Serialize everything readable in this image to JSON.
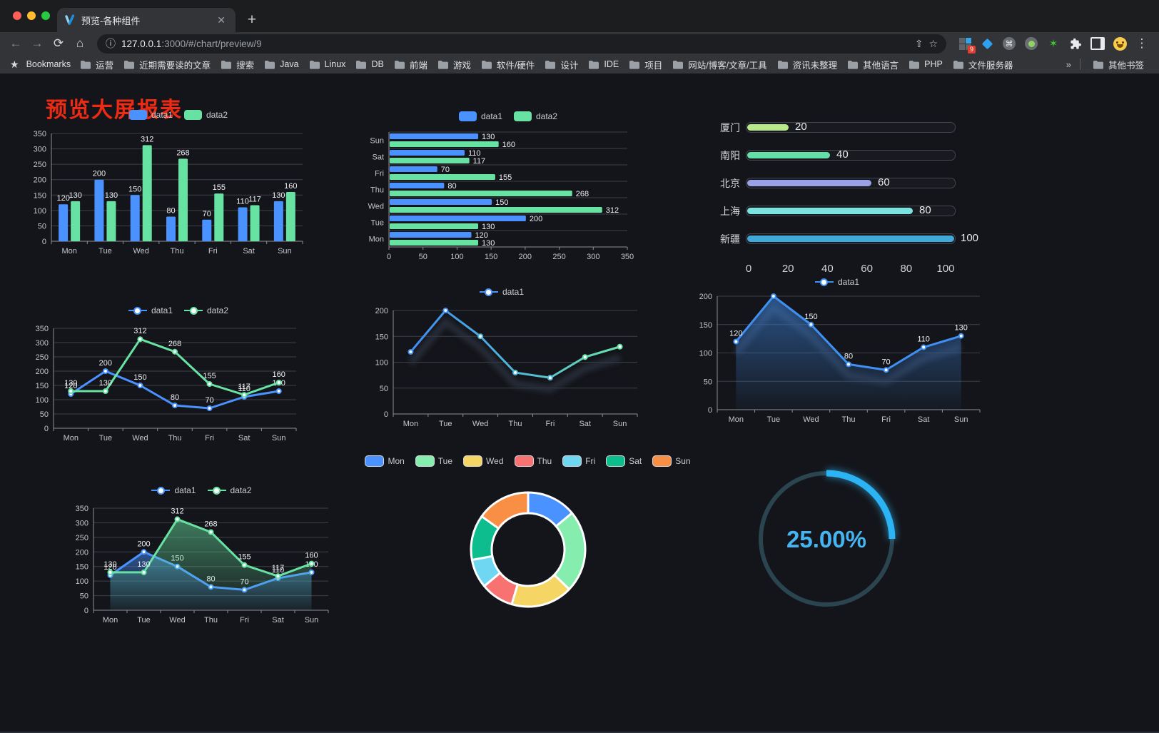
{
  "browser": {
    "tab_title": "预览-各种组件",
    "close_label": "✕",
    "new_tab_label": "+",
    "url_host": "127.0.0.1",
    "url_rest": ":3000/#/chart/preview/9",
    "bookmarks_label": "Bookmarks",
    "bookmarks": [
      "运营",
      "近期需要读的文章",
      "搜索",
      "Java",
      "Linux",
      "DB",
      "前端",
      "游戏",
      "软件/硬件",
      "设计",
      "IDE",
      "项目",
      "网站/博客/文章/工具",
      "资讯未整理",
      "其他语言",
      "PHP",
      "文件服务器"
    ],
    "bookmarks_overflow": "»",
    "other_bookmarks": "其他书签",
    "extension_badge": "9",
    "extensions": [
      "grid-badge-extension-icon",
      "gem-extension-icon",
      "command-extension-icon",
      "dot-extension-icon",
      "green-star-extension-icon"
    ]
  },
  "page": {
    "title": "预览大屏报表",
    "title_color": "#ed2b15"
  },
  "palette": {
    "data1": "#4992ff",
    "data2": "#68e2a2",
    "grid": "#3d4046",
    "axis": "#8b8f95",
    "tick_text": "#c3c6cb",
    "value_text": "#eef0f3"
  },
  "chart_data": [
    {
      "id": "grouped-bar",
      "type": "bar",
      "categories": [
        "Mon",
        "Tue",
        "Wed",
        "Thu",
        "Fri",
        "Sat",
        "Sun"
      ],
      "series": [
        {
          "name": "data1",
          "color": "#4992ff",
          "values": [
            120,
            200,
            150,
            80,
            70,
            110,
            130
          ]
        },
        {
          "name": "data2",
          "color": "#68e2a2",
          "values": [
            130,
            130,
            312,
            268,
            155,
            117,
            160
          ]
        }
      ],
      "ylim": [
        0,
        350
      ],
      "ystep": 50,
      "legend": "roundRect",
      "value_labels": true
    },
    {
      "id": "horizontal-bar",
      "type": "bar-horizontal",
      "categories": [
        "Mon",
        "Tue",
        "Wed",
        "Thu",
        "Fri",
        "Sat",
        "Sun"
      ],
      "series": [
        {
          "name": "data1",
          "color": "#4992ff",
          "values": [
            120,
            200,
            150,
            80,
            70,
            110,
            130
          ]
        },
        {
          "name": "data2",
          "color": "#68e2a2",
          "values": [
            130,
            130,
            312,
            268,
            155,
            117,
            160
          ]
        }
      ],
      "xlim": [
        0,
        350
      ],
      "xstep": 50,
      "legend": "roundRect",
      "value_labels": true
    },
    {
      "id": "progress-bars",
      "type": "progress",
      "items": [
        {
          "label": "厦门",
          "value": 20,
          "color": "#b7e98c"
        },
        {
          "label": "南阳",
          "value": 40,
          "color": "#65dfa8"
        },
        {
          "label": "北京",
          "value": 60,
          "color": "#9aa0e5"
        },
        {
          "label": "上海",
          "value": 80,
          "color": "#7ae3e0"
        },
        {
          "label": "新疆",
          "value": 100,
          "color": "#41a9da"
        }
      ],
      "xlim": [
        0,
        100
      ],
      "xticks": [
        0,
        20,
        40,
        60,
        80,
        100
      ]
    },
    {
      "id": "line-two-series",
      "type": "line",
      "categories": [
        "Mon",
        "Tue",
        "Wed",
        "Thu",
        "Fri",
        "Sat",
        "Sun"
      ],
      "series": [
        {
          "name": "data1",
          "color": "#4992ff",
          "values": [
            120,
            200,
            150,
            80,
            70,
            110,
            130
          ]
        },
        {
          "name": "data2",
          "color": "#68e2a2",
          "values": [
            130,
            130,
            312,
            268,
            155,
            117,
            160
          ]
        }
      ],
      "ylim": [
        0,
        350
      ],
      "ystep": 50,
      "legend": "lineMarker",
      "value_labels": true
    },
    {
      "id": "line-gradient",
      "type": "line",
      "categories": [
        "Mon",
        "Tue",
        "Wed",
        "Thu",
        "Fri",
        "Sat",
        "Sun"
      ],
      "series": [
        {
          "name": "data1",
          "color": "#4992ff",
          "gradient": [
            "#3f8cf2",
            "#4fb6d8",
            "#67e2a8"
          ],
          "values": [
            120,
            200,
            150,
            80,
            70,
            110,
            130
          ]
        }
      ],
      "ylim": [
        0,
        200
      ],
      "ystep": 50,
      "legend": "lineMarker",
      "value_labels": false,
      "shadow": true
    },
    {
      "id": "area-single",
      "type": "line",
      "categories": [
        "Mon",
        "Tue",
        "Wed",
        "Thu",
        "Fri",
        "Sat",
        "Sun"
      ],
      "series": [
        {
          "name": "data1",
          "color": "#4090f2",
          "area": true,
          "values": [
            120,
            200,
            150,
            80,
            70,
            110,
            130
          ]
        }
      ],
      "ylim": [
        0,
        200
      ],
      "ystep": 50,
      "legend": "lineMarker",
      "value_labels": true,
      "shadow": true
    },
    {
      "id": "line-area-two-series",
      "type": "line",
      "categories": [
        "Mon",
        "Tue",
        "Wed",
        "Thu",
        "Fri",
        "Sat",
        "Sun"
      ],
      "series": [
        {
          "name": "data1",
          "color": "#4992ff",
          "area": true,
          "values": [
            120,
            200,
            150,
            80,
            70,
            110,
            130
          ]
        },
        {
          "name": "data2",
          "color": "#68e2a2",
          "area": true,
          "values": [
            130,
            130,
            312,
            268,
            155,
            117,
            160
          ]
        }
      ],
      "ylim": [
        0,
        350
      ],
      "ystep": 50,
      "legend": "lineMarker",
      "value_labels": true
    },
    {
      "id": "donut",
      "type": "pie",
      "categories": [
        "Mon",
        "Tue",
        "Wed",
        "Thu",
        "Fri",
        "Sat",
        "Sun"
      ],
      "values": [
        120,
        200,
        150,
        80,
        70,
        110,
        130
      ],
      "colors": [
        "#4992ff",
        "#85edae",
        "#f5d564",
        "#f87272",
        "#6fd7f2",
        "#0dbd8d",
        "#f98f45"
      ],
      "legend": "roundRect"
    },
    {
      "id": "gauge",
      "type": "gauge",
      "value": 25,
      "label": "25.00%",
      "color": "#2bb3f3",
      "track_color": "#2a4550",
      "text_color": "#47b4f2"
    }
  ]
}
